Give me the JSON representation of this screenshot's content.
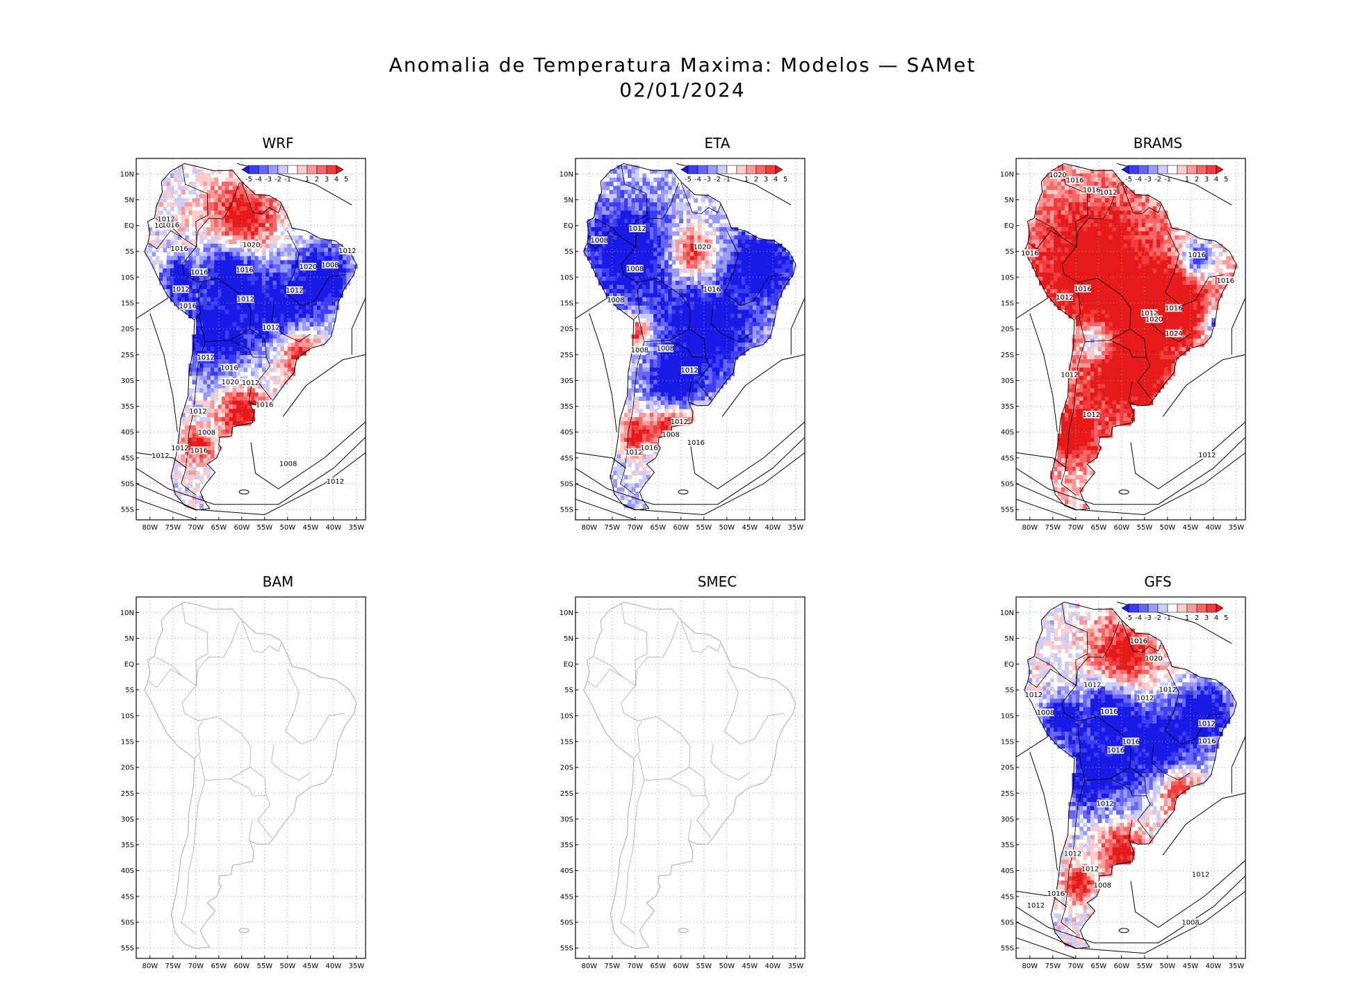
{
  "title": {
    "line1": "Anomalia de Temperatura Maxima: Modelos — SAMet",
    "line2": "02/01/2024"
  },
  "map": {
    "lat_labels": [
      "10N",
      "5N",
      "EQ",
      "5S",
      "10S",
      "15S",
      "20S",
      "25S",
      "30S",
      "35S",
      "40S",
      "45S",
      "50S",
      "55S"
    ],
    "lon_labels": [
      "80W",
      "75W",
      "70W",
      "65W",
      "60W",
      "55W",
      "50W",
      "45W",
      "40W",
      "35W"
    ],
    "colorbar_labels": [
      "-5",
      "-4",
      "-3",
      "-2",
      "-1",
      "1",
      "2",
      "3",
      "4",
      "5"
    ],
    "colorbar_colors": [
      "#1a1ae6",
      "#3c3cf0",
      "#6666f5",
      "#9a9af8",
      "#cdcdfb",
      "#ffffff",
      "#fbcdcd",
      "#f89a9a",
      "#f56666",
      "#f03c3c",
      "#e61a1a"
    ]
  },
  "panels": [
    {
      "name": "WRF",
      "has_data": true,
      "anomaly": "mixed",
      "isobars": [
        "1012",
        "1016",
        "1012",
        "1012",
        "1012",
        "1012",
        "1012",
        "1012",
        "1012",
        "1012",
        "1020",
        "1008",
        "1016",
        "1012",
        "1008",
        "1016",
        "1016",
        "1016",
        "1012",
        "1020",
        "1012",
        "1016",
        "1016",
        "1020",
        "1016",
        "1012",
        "1012",
        "1008"
      ]
    },
    {
      "name": "ETA",
      "has_data": true,
      "anomaly": "cold",
      "isobars": [
        "1008",
        "1008",
        "1008",
        "1008",
        "1012",
        "1008",
        "1016",
        "1012",
        "1020",
        "1016",
        "1012",
        "1008",
        "1016",
        "1012"
      ]
    },
    {
      "name": "BRAMS",
      "has_data": true,
      "anomaly": "warm",
      "isobars": [
        "1016",
        "1016",
        "1012",
        "1012",
        "1012",
        "1016",
        "1012",
        "1016",
        "1016",
        "1012",
        "1020",
        "1024",
        "1016",
        "1020",
        "1016",
        "1012"
      ]
    },
    {
      "name": "BAM",
      "has_data": false,
      "anomaly": "none",
      "isobars": []
    },
    {
      "name": "SMEC",
      "has_data": false,
      "anomaly": "none",
      "isobars": []
    },
    {
      "name": "GFS",
      "has_data": true,
      "anomaly": "mixed",
      "isobars": [
        "1012",
        "1012",
        "1012",
        "1012",
        "1016",
        "1016",
        "1012",
        "1008",
        "1012",
        "1012",
        "1008",
        "1016",
        "1012",
        "1016",
        "1016",
        "1020",
        "1016",
        "1012",
        "1012",
        "1008"
      ]
    }
  ]
}
